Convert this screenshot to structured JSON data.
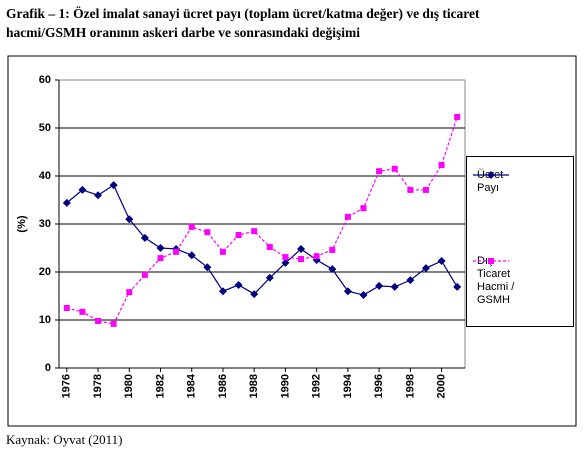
{
  "chart_data": {
    "type": "line",
    "title_lines": [
      "Grafik – 1: Özel  imalat sanayi ücret payı (toplam ücret/katma değer) ve dış ticaret",
      "hacmi/GSMH oranının askeri darbe ve sonrasındaki değişimi"
    ],
    "y_label": "(%)",
    "source": "Kaynak: Oyvat (2011)",
    "x": [
      1976,
      1977,
      1978,
      1979,
      1980,
      1981,
      1982,
      1983,
      1984,
      1985,
      1986,
      1987,
      1988,
      1989,
      1990,
      1991,
      1992,
      1993,
      1994,
      1995,
      1996,
      1997,
      1998,
      1999,
      2000,
      2001
    ],
    "xlim": [
      1975.5,
      2001.5
    ],
    "xticks": [
      1976,
      1978,
      1980,
      1982,
      1984,
      1986,
      1988,
      1990,
      1992,
      1994,
      1996,
      1998,
      2000
    ],
    "ylim": [
      0,
      60
    ],
    "yticks": [
      0,
      10,
      20,
      30,
      40,
      50,
      60
    ],
    "grid": true,
    "series": [
      {
        "name": "Ücret Payı",
        "color": "#000080",
        "marker": "diamond",
        "dash": false,
        "values": [
          34.4,
          37.1,
          36.0,
          38.1,
          31.0,
          27.1,
          25.0,
          24.8,
          23.5,
          21.0,
          16.0,
          17.3,
          15.4,
          18.8,
          21.9,
          24.8,
          22.5,
          20.6,
          16.0,
          15.2,
          17.1,
          16.9,
          18.3,
          20.8,
          22.3,
          16.9
        ]
      },
      {
        "name": "Dış Ticaret Hacmi / GSMH",
        "color": "#ff00ff",
        "marker": "square",
        "dash": true,
        "values": [
          12.5,
          11.7,
          9.8,
          9.2,
          15.8,
          19.4,
          22.9,
          24.2,
          29.4,
          28.3,
          24.2,
          27.7,
          28.5,
          25.2,
          23.1,
          22.7,
          23.3,
          24.6,
          31.5,
          33.3,
          41.0,
          41.5,
          37.1,
          37.1,
          42.3,
          52.3
        ]
      }
    ]
  }
}
